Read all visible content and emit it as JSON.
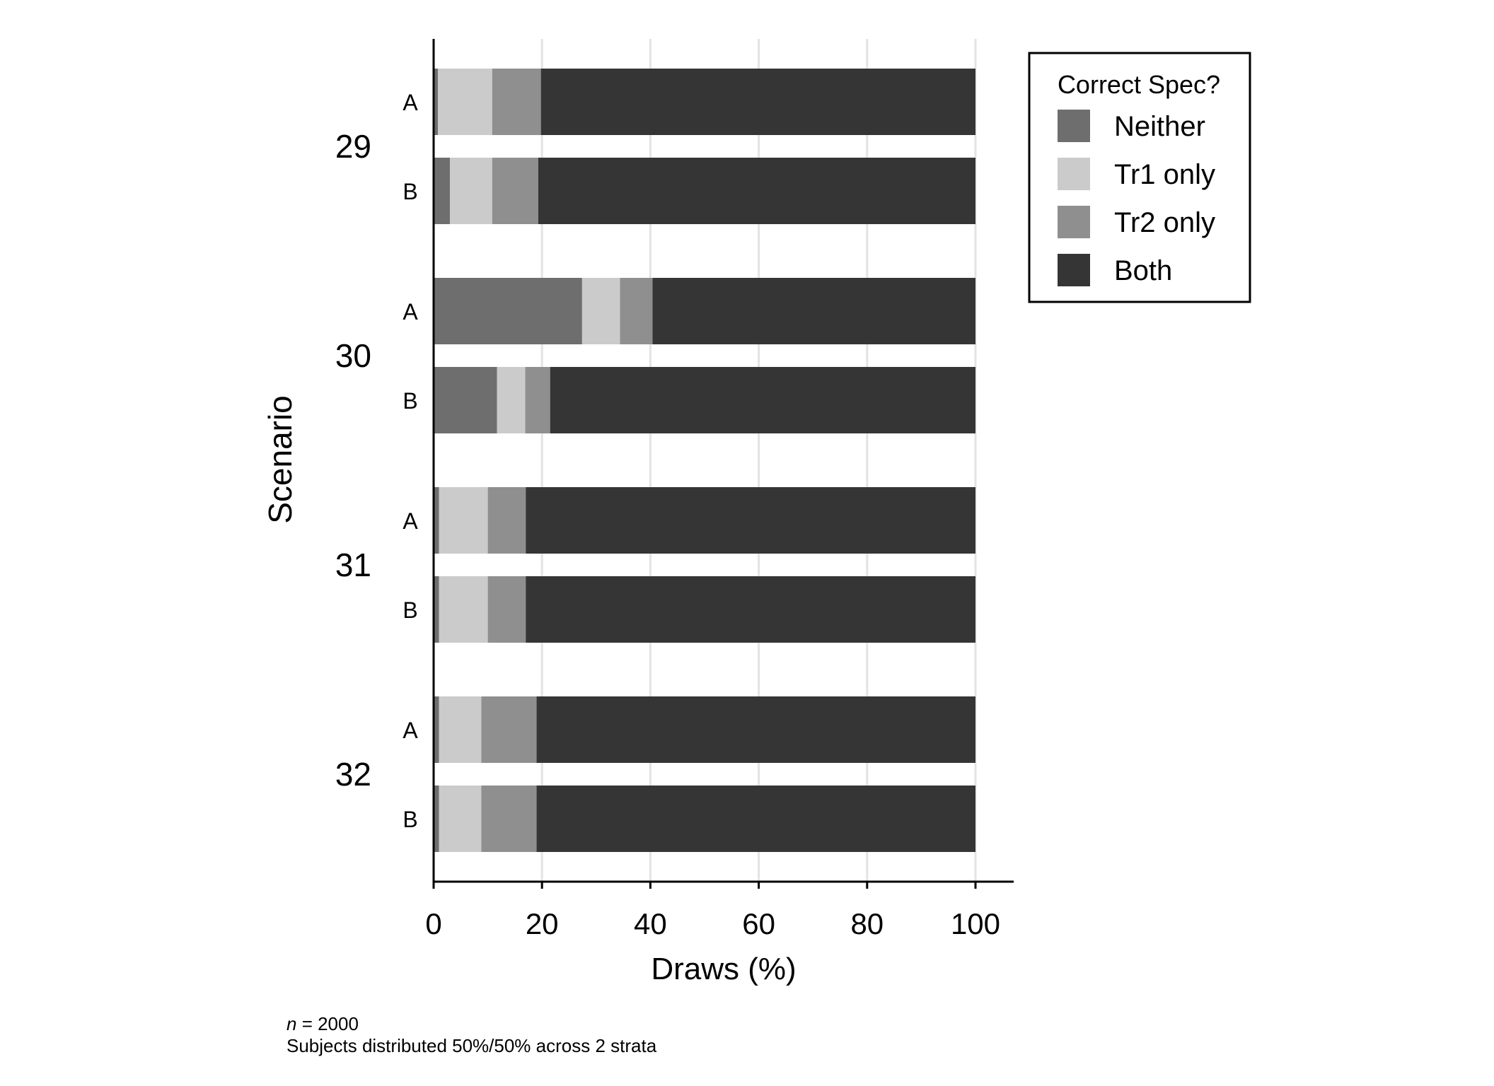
{
  "chart_data": {
    "type": "bar",
    "orientation": "horizontal",
    "stacked": true,
    "xlabel": "Draws (%)",
    "ylabel": "Scenario",
    "xlim": [
      0,
      100
    ],
    "xticks": [
      0,
      20,
      40,
      60,
      80,
      100
    ],
    "grid": true,
    "groups": [
      {
        "label": "29",
        "bars": [
          {
            "label": "A",
            "values": [
              0.8,
              10.0,
              9.0,
              80.2
            ]
          },
          {
            "label": "B",
            "values": [
              3.0,
              7.8,
              8.5,
              80.7
            ]
          }
        ]
      },
      {
        "label": "30",
        "bars": [
          {
            "label": "A",
            "values": [
              27.4,
              7.0,
              6.0,
              59.6
            ]
          },
          {
            "label": "B",
            "values": [
              11.7,
              5.2,
              4.6,
              78.5
            ]
          }
        ]
      },
      {
        "label": "31",
        "bars": [
          {
            "label": "A",
            "values": [
              1.0,
              9.0,
              7.0,
              83.0
            ]
          },
          {
            "label": "B",
            "values": [
              1.0,
              9.0,
              7.0,
              83.0
            ]
          }
        ]
      },
      {
        "label": "32",
        "bars": [
          {
            "label": "A",
            "values": [
              1.0,
              7.8,
              10.2,
              81.0
            ]
          },
          {
            "label": "B",
            "values": [
              1.0,
              7.8,
              10.2,
              81.0
            ]
          }
        ]
      }
    ],
    "series": [
      {
        "name": "Neither",
        "color": "#6e6e6e"
      },
      {
        "name": "Tr1 only",
        "color": "#cbcbcb"
      },
      {
        "name": "Tr2 only",
        "color": "#8f8f8f"
      },
      {
        "name": "Both",
        "color": "#353535"
      }
    ],
    "legend": {
      "title": "Correct Spec?",
      "position": "top-right"
    },
    "notes": {
      "n_label": "n",
      "n_rest": " = 2000",
      "line2": "Subjects distributed 50%/50% across 2 strata"
    }
  }
}
